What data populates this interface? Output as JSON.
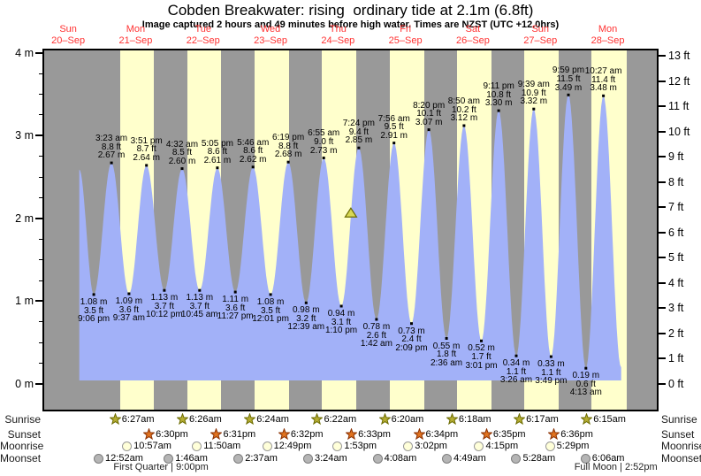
{
  "title": "Cobden Breakwater: rising  ordinary tide at 2.1m (6.8ft)",
  "subtitle": "Image captured 2 hours and 49 minutes before high water. Times are NZST (UTC +12.0hrs)",
  "colors": {
    "night_band": "#999999",
    "day_band": "#ffffcc",
    "tide_fill": "#a2b1f8",
    "day_label_red": "#ff3232",
    "sunrise_star": "#b5ad33",
    "sunset_star": "#e0731f",
    "moonrise_disc": "#ffffd9",
    "moonset_disc": "#b5b5b5",
    "marker_fill": "#d8d855"
  },
  "chart_data": {
    "type": "area",
    "ylabel_left_unit": "m",
    "ylabel_right_unit": "ft",
    "ylim_m": [
      0,
      4
    ],
    "ylim_ft": [
      0,
      13
    ],
    "grid": false,
    "y_left_ticks": [
      "4 m",
      "3 m",
      "2 m",
      "1 m",
      "0 m"
    ],
    "y_right_ticks": [
      "13 ft",
      "12 ft",
      "11 ft",
      "10 ft",
      "9 ft",
      "8 ft",
      "7 ft",
      "6 ft",
      "5 ft",
      "4 ft",
      "3 ft",
      "2 ft",
      "1 ft",
      "0 ft"
    ],
    "days": [
      {
        "name": "Sun",
        "date": "20–Sep"
      },
      {
        "name": "Mon",
        "date": "21–Sep"
      },
      {
        "name": "Tue",
        "date": "22–Sep"
      },
      {
        "name": "Wed",
        "date": "23–Sep"
      },
      {
        "name": "Thu",
        "date": "24–Sep"
      },
      {
        "name": "Fri",
        "date": "25–Sep"
      },
      {
        "name": "Sat",
        "date": "26–Sep"
      },
      {
        "name": "Sun",
        "date": "27–Sep"
      },
      {
        "name": "Mon",
        "date": "28–Sep"
      }
    ],
    "tide_events": [
      {
        "day": 0,
        "time": null,
        "hour": 15.95,
        "type": "high",
        "height_m": 2.59,
        "height_ft": null,
        "labeled": false
      },
      {
        "day": 0,
        "time": "9:06 pm",
        "type": "low",
        "height_m": 1.08,
        "height_ft": 3.5,
        "labeled": true
      },
      {
        "day": 1,
        "time": "3:23 am",
        "type": "high",
        "height_m": 2.67,
        "height_ft": 8.8,
        "labeled": true
      },
      {
        "day": 1,
        "time": "9:37 am",
        "type": "low",
        "height_m": 1.09,
        "height_ft": 3.6,
        "labeled": true
      },
      {
        "day": 1,
        "time": "3:51 pm",
        "type": "high",
        "height_m": 2.64,
        "height_ft": 8.7,
        "labeled": true
      },
      {
        "day": 1,
        "time": "10:12 pm",
        "type": "low",
        "height_m": 1.13,
        "height_ft": 3.7,
        "labeled": true
      },
      {
        "day": 2,
        "time": "4:32 am",
        "type": "high",
        "height_m": 2.6,
        "height_ft": 8.5,
        "labeled": true
      },
      {
        "day": 2,
        "time": "10:45 am",
        "type": "low",
        "height_m": 1.13,
        "height_ft": 3.7,
        "labeled": true
      },
      {
        "day": 2,
        "time": "5:05 pm",
        "type": "high",
        "height_m": 2.61,
        "height_ft": 8.6,
        "labeled": true
      },
      {
        "day": 2,
        "time": "11:27 pm",
        "type": "low",
        "height_m": 1.11,
        "height_ft": 3.6,
        "labeled": true
      },
      {
        "day": 3,
        "time": "5:46 am",
        "type": "high",
        "height_m": 2.62,
        "height_ft": 8.6,
        "labeled": true
      },
      {
        "day": 3,
        "time": "12:01 pm",
        "type": "low",
        "height_m": 1.08,
        "height_ft": 3.5,
        "labeled": true
      },
      {
        "day": 3,
        "time": "6:19 pm",
        "type": "high",
        "height_m": 2.68,
        "height_ft": 8.8,
        "labeled": true
      },
      {
        "day": 4,
        "time": "12:39 am",
        "type": "low",
        "height_m": 0.98,
        "height_ft": 3.2,
        "labeled": true
      },
      {
        "day": 4,
        "time": "6:55 am",
        "type": "high",
        "height_m": 2.73,
        "height_ft": 9.0,
        "labeled": true
      },
      {
        "day": 4,
        "time": "1:10 pm",
        "type": "low",
        "height_m": 0.94,
        "height_ft": 3.1,
        "labeled": true
      },
      {
        "day": 4,
        "time": "7:24 pm",
        "type": "high",
        "height_m": 2.85,
        "height_ft": 9.4,
        "labeled": true
      },
      {
        "day": 5,
        "time": "1:42 am",
        "type": "low",
        "height_m": 0.78,
        "height_ft": 2.6,
        "labeled": true
      },
      {
        "day": 5,
        "time": "7:56 am",
        "type": "high",
        "height_m": 2.91,
        "height_ft": 9.5,
        "labeled": true
      },
      {
        "day": 5,
        "time": "2:09 pm",
        "type": "low",
        "height_m": 0.73,
        "height_ft": 2.4,
        "labeled": true
      },
      {
        "day": 5,
        "time": "8:20 pm",
        "type": "high",
        "height_m": 3.07,
        "height_ft": 10.1,
        "labeled": true
      },
      {
        "day": 6,
        "time": "2:36 am",
        "type": "low",
        "height_m": 0.55,
        "height_ft": 1.8,
        "labeled": true
      },
      {
        "day": 6,
        "time": "8:50 am",
        "type": "high",
        "height_m": 3.12,
        "height_ft": 10.2,
        "labeled": true
      },
      {
        "day": 6,
        "time": "3:01 pm",
        "type": "low",
        "height_m": 0.52,
        "height_ft": 1.7,
        "labeled": true
      },
      {
        "day": 6,
        "time": "9:11 pm",
        "type": "high",
        "height_m": 3.3,
        "height_ft": 10.8,
        "labeled": true
      },
      {
        "day": 7,
        "time": "3:26 am",
        "type": "low",
        "height_m": 0.34,
        "height_ft": 1.1,
        "labeled": true
      },
      {
        "day": 7,
        "time": "9:39 am",
        "type": "high",
        "height_m": 3.32,
        "height_ft": 10.9,
        "labeled": true
      },
      {
        "day": 7,
        "time": "3:49 pm",
        "type": "low",
        "height_m": 0.33,
        "height_ft": 1.1,
        "labeled": true
      },
      {
        "day": 7,
        "time": "9:59 pm",
        "type": "high",
        "height_m": 3.49,
        "height_ft": 11.5,
        "labeled": true
      },
      {
        "day": 8,
        "time": "4:13 am",
        "type": "low",
        "height_m": 0.19,
        "height_ft": 0.6,
        "labeled": true
      },
      {
        "day": 8,
        "time": "10:27 am",
        "type": "high",
        "height_m": 3.48,
        "height_ft": 11.4,
        "labeled": true
      },
      {
        "day": 8,
        "time": null,
        "hour": 16.75,
        "type": "low",
        "height_m": 0.2,
        "height_ft": null,
        "labeled": false
      }
    ],
    "marker": {
      "day": 4,
      "hour": 16.58,
      "height_m": 2.07,
      "shape": "triangle",
      "meaning": "current tide level 2.1m rising"
    },
    "daylight_bands": [
      {
        "day": 1,
        "from": 6.45,
        "to": 18.5
      },
      {
        "day": 2,
        "from": 6.433,
        "to": 18.517
      },
      {
        "day": 3,
        "from": 6.4,
        "to": 18.533
      },
      {
        "day": 4,
        "from": 6.367,
        "to": 18.55
      },
      {
        "day": 5,
        "from": 6.333,
        "to": 18.567
      },
      {
        "day": 6,
        "from": 6.3,
        "to": 18.583
      },
      {
        "day": 7,
        "from": 6.283,
        "to": 18.6
      },
      {
        "day": 8,
        "from": 6.25,
        "to": 18.617
      }
    ]
  },
  "astro": {
    "rows": [
      {
        "label": "Sunrise",
        "entries": [
          {
            "day": 1,
            "time": "6:27am"
          },
          {
            "day": 2,
            "time": "6:26am"
          },
          {
            "day": 3,
            "time": "6:24am"
          },
          {
            "day": 4,
            "time": "6:22am"
          },
          {
            "day": 5,
            "time": "6:20am"
          },
          {
            "day": 6,
            "time": "6:18am"
          },
          {
            "day": 7,
            "time": "6:17am"
          },
          {
            "day": 8,
            "time": "6:15am"
          }
        ]
      },
      {
        "label": "Sunset",
        "entries": [
          {
            "day": 1,
            "time": "6:30pm"
          },
          {
            "day": 2,
            "time": "6:31pm"
          },
          {
            "day": 3,
            "time": "6:32pm"
          },
          {
            "day": 4,
            "time": "6:33pm"
          },
          {
            "day": 5,
            "time": "6:34pm"
          },
          {
            "day": 6,
            "time": "6:35pm"
          },
          {
            "day": 7,
            "time": "6:36pm"
          }
        ]
      },
      {
        "label": "Moonrise",
        "entries": [
          {
            "day": 1,
            "time": "10:57am"
          },
          {
            "day": 2,
            "time": "11:50am"
          },
          {
            "day": 3,
            "time": "12:49pm"
          },
          {
            "day": 4,
            "time": "1:53pm"
          },
          {
            "day": 5,
            "time": "3:02pm"
          },
          {
            "day": 6,
            "time": "4:15pm"
          },
          {
            "day": 7,
            "time": "5:29pm"
          }
        ]
      },
      {
        "label": "Moonset",
        "entries": [
          {
            "day": 1,
            "time": "12:52am"
          },
          {
            "day": 2,
            "time": "1:46am"
          },
          {
            "day": 3,
            "time": "2:37am"
          },
          {
            "day": 4,
            "time": "3:24am"
          },
          {
            "day": 5,
            "time": "4:08am"
          },
          {
            "day": 6,
            "time": "4:49am"
          },
          {
            "day": 7,
            "time": "5:28am"
          },
          {
            "day": 8,
            "time": "6:06am"
          }
        ]
      }
    ],
    "phases": [
      {
        "label": "First Quarter | 9:00pm",
        "day": 1,
        "hour": 21.0
      },
      {
        "label": "Full Moon | 2:52pm",
        "day": 8,
        "hour": 14.87
      }
    ]
  }
}
